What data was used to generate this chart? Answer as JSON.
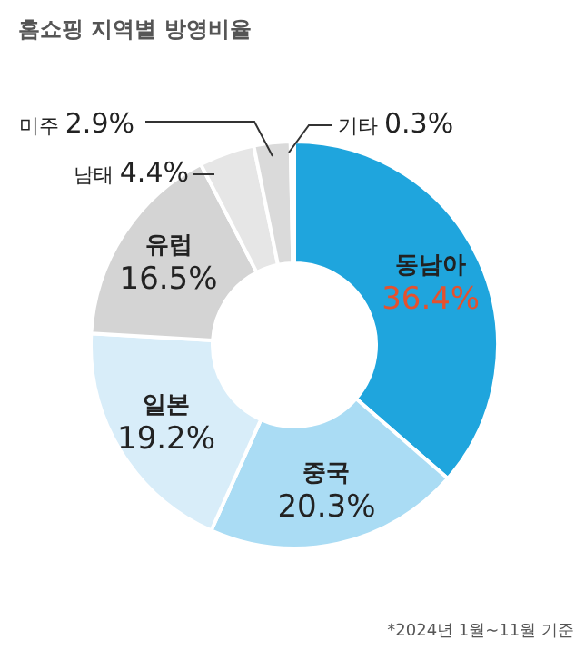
{
  "chart_data": {
    "type": "donut",
    "title": "홈쇼핑 지역별 방영비율",
    "categories": [
      "동남아",
      "중국",
      "일본",
      "유럽",
      "남태",
      "미주",
      "기타"
    ],
    "values": [
      36.4,
      20.3,
      19.2,
      16.5,
      4.4,
      2.9,
      0.3
    ],
    "colors": [
      "#1fa5dd",
      "#aadcf4",
      "#d8edf9",
      "#d4d4d4",
      "#e6e6e6",
      "#dadada",
      "#b8b8b8"
    ],
    "value_labels": [
      "36.4%",
      "20.3%",
      "19.2%",
      "16.5%",
      "4.4%",
      "2.9%",
      "0.3%"
    ],
    "annotations": [
      "*2024년 1월~11월 기준"
    ]
  }
}
